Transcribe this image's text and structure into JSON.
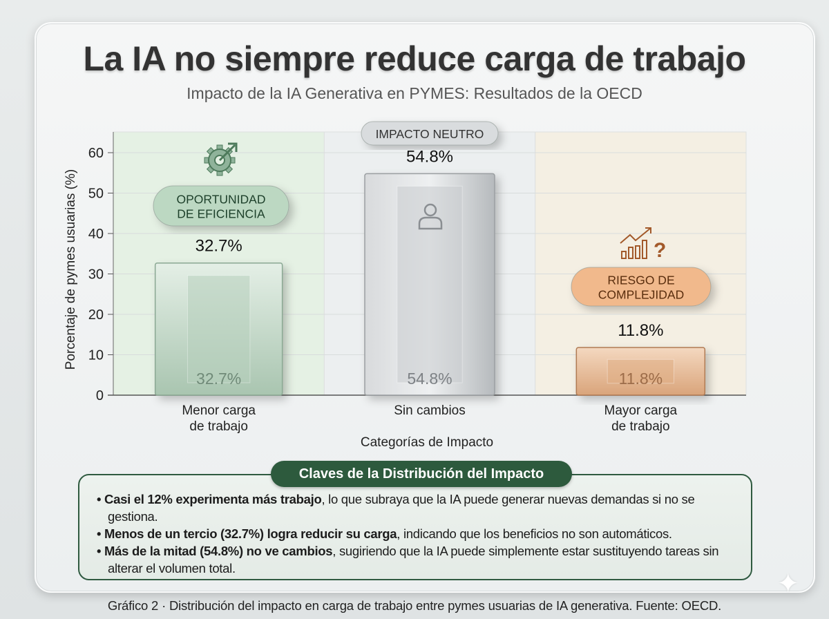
{
  "header": {
    "title": "La IA no siempre reduce carga de trabajo",
    "subtitle": "Impacto de la IA Generativa en PYMES: Resultados de la OECD"
  },
  "chart_data": {
    "type": "bar",
    "categories": [
      "Menor carga\nde trabajo",
      "Sin cambios",
      "Mayor carga\nde trabajo"
    ],
    "values": [
      32.7,
      54.8,
      11.8
    ],
    "value_labels": [
      "32.7%",
      "54.8%",
      "11.8%"
    ],
    "xlabel": "Categorías de Impacto",
    "ylabel": "Porcentaje de pymes usuarias (%)",
    "ylim": [
      0,
      65
    ],
    "yticks": [
      0,
      10,
      20,
      30,
      40,
      50,
      60
    ],
    "grid": true,
    "bar_colors": [
      "#b7d0bd",
      "#c9cccf",
      "#e0ae84"
    ],
    "column_tints": [
      "#e5f1e4",
      "#eceff0",
      "#f4efe3"
    ],
    "annotations": [
      {
        "label": "OPORTUNIDAD\nDE EFICIENCIA",
        "icon": "gear-target-arrow-icon",
        "color": "#bcd8c2",
        "text_color": "#1f3f2a"
      },
      {
        "label": "IMPACTO NEUTRO",
        "icon": "person-icon",
        "color": "#d9dcde",
        "text_color": "#333333"
      },
      {
        "label": "RIESGO DE\nCOMPLEJIDAD",
        "icon": "rising-bars-question-icon",
        "color": "#f1b98c",
        "text_color": "#5a2e10"
      }
    ]
  },
  "key": {
    "title": "Claves de la Distribución del Impacto",
    "items": [
      {
        "bold": "Casi el 12% experimenta más trabajo",
        "rest": ", lo que subraya que la IA puede generar nuevas demandas si no se gestiona."
      },
      {
        "bold": "Menos de un tercio (32.7%) logra reducir su carga",
        "rest": ", indicando que los beneficios no son automáticos."
      },
      {
        "bold": "Más de la mitad (54.8%) no ve cambios",
        "rest": ", sugiriendo que la IA puede simplemente estar sustituyendo tareas sin alterar el volumen total."
      }
    ]
  },
  "caption": "Gráfico 2 · Distribución del impacto en carga de trabajo entre pymes usuarias de IA generativa. Fuente: OECD."
}
